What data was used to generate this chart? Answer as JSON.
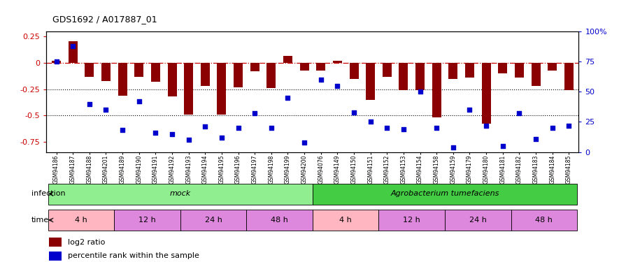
{
  "title": "GDS1692 / A017887_01",
  "samples": [
    "GSM94186",
    "GSM94187",
    "GSM94188",
    "GSM94201",
    "GSM94189",
    "GSM94190",
    "GSM94191",
    "GSM94192",
    "GSM94193",
    "GSM94194",
    "GSM94195",
    "GSM94196",
    "GSM94197",
    "GSM94198",
    "GSM94199",
    "GSM94200",
    "GSM94076",
    "GSM94149",
    "GSM94150",
    "GSM94151",
    "GSM94152",
    "GSM94153",
    "GSM94154",
    "GSM94158",
    "GSM94159",
    "GSM94179",
    "GSM94180",
    "GSM94181",
    "GSM94182",
    "GSM94183",
    "GSM94184",
    "GSM94185"
  ],
  "log2_ratio": [
    0.02,
    0.21,
    -0.13,
    -0.17,
    -0.31,
    -0.13,
    -0.18,
    -0.32,
    -0.49,
    -0.22,
    -0.49,
    -0.23,
    -0.08,
    -0.24,
    0.07,
    -0.07,
    -0.07,
    0.02,
    -0.15,
    -0.35,
    -0.13,
    -0.26,
    -0.26,
    -0.52,
    -0.15,
    -0.14,
    -0.58,
    -0.1,
    -0.14,
    -0.22,
    -0.07,
    -0.26
  ],
  "percentile_rank": [
    75,
    88,
    40,
    35,
    18,
    42,
    16,
    15,
    10,
    21,
    12,
    20,
    32,
    20,
    45,
    8,
    60,
    55,
    33,
    25,
    20,
    19,
    50,
    20,
    4,
    35,
    22,
    5,
    32,
    11,
    20,
    22
  ],
  "infection_groups": [
    {
      "label": "mock",
      "start": 0,
      "end": 16,
      "color": "#90EE90"
    },
    {
      "label": "Agrobacterium tumefaciens",
      "start": 16,
      "end": 32,
      "color": "#44CC44"
    }
  ],
  "time_groups": [
    {
      "label": "4 h",
      "start": 0,
      "end": 4,
      "color": "#FFB6C1"
    },
    {
      "label": "12 h",
      "start": 4,
      "end": 8,
      "color": "#DD88DD"
    },
    {
      "label": "24 h",
      "start": 8,
      "end": 12,
      "color": "#DD88DD"
    },
    {
      "label": "48 h",
      "start": 12,
      "end": 16,
      "color": "#DD88DD"
    },
    {
      "label": "4 h",
      "start": 16,
      "end": 20,
      "color": "#FFB6C1"
    },
    {
      "label": "12 h",
      "start": 20,
      "end": 24,
      "color": "#DD88DD"
    },
    {
      "label": "24 h",
      "start": 24,
      "end": 28,
      "color": "#DD88DD"
    },
    {
      "label": "48 h",
      "start": 28,
      "end": 32,
      "color": "#DD88DD"
    }
  ],
  "bar_color": "#8B0000",
  "scatter_color": "#0000CC",
  "ylim_left": [
    -0.85,
    0.3
  ],
  "ylim_right": [
    0,
    100
  ],
  "yticks_left": [
    -0.75,
    -0.5,
    -0.25,
    0,
    0.25
  ],
  "yticks_right": [
    0,
    25,
    50,
    75,
    100
  ],
  "hlines_dotted": [
    -0.5,
    -0.25
  ],
  "dashed_hline": 0.0
}
